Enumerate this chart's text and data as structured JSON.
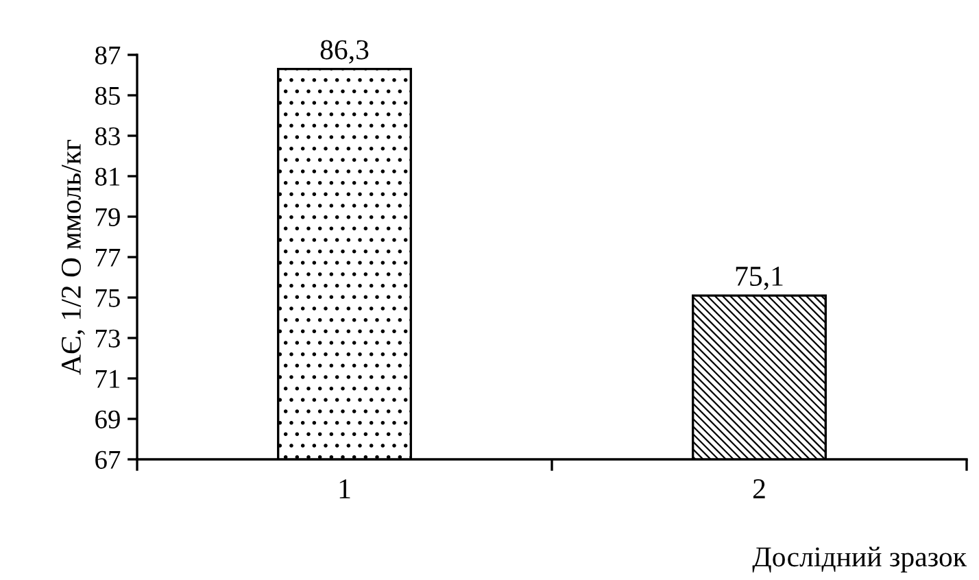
{
  "chart_data": {
    "type": "bar",
    "categories": [
      "1",
      "2"
    ],
    "values": [
      86.3,
      75.1
    ],
    "value_labels": [
      "86,3",
      "75,1"
    ],
    "color": "#000000",
    "ylabel": "АЄ, 1/2 О ммоль/кг",
    "xlabel": "Дослідний зразок",
    "ylim": [
      67,
      87
    ],
    "yticks": [
      67,
      69,
      71,
      73,
      75,
      77,
      79,
      81,
      83,
      85,
      87
    ],
    "grid": false,
    "legend": false
  }
}
